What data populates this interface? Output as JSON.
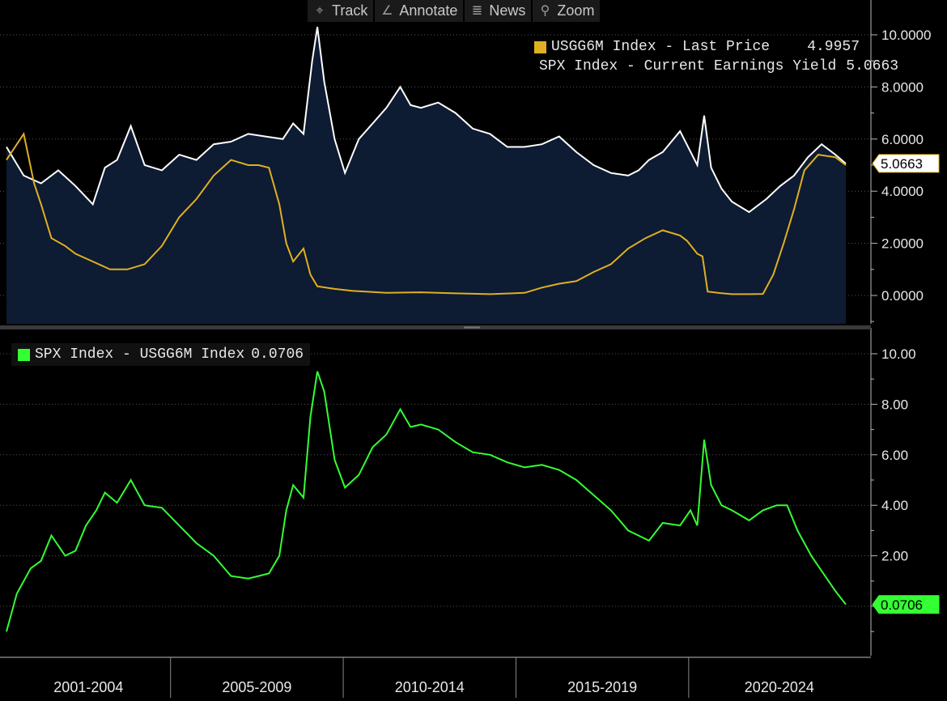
{
  "toolbar": {
    "items": [
      {
        "label": "Track",
        "icon": "crosshair-icon",
        "glyph": "⌖"
      },
      {
        "label": "Annotate",
        "icon": "pencil-icon",
        "glyph": "∠"
      },
      {
        "label": "News",
        "icon": "news-icon",
        "glyph": "≣"
      },
      {
        "label": "Zoom",
        "icon": "magnifier-icon",
        "glyph": "⚲"
      }
    ]
  },
  "colors": {
    "background": "#000000",
    "area_fill": "#0d1b33",
    "yield_line": "#ffffff",
    "usgg_line": "#e0b020",
    "spread_line": "#33ff33",
    "grid": "#555555",
    "axis": "#bbbbbb"
  },
  "legend_top": [
    {
      "label": "USGG6M Index - Last Price",
      "value": "4.9957",
      "color": "#e0b020"
    },
    {
      "label": "SPX Index - Current Earnings Yield",
      "value": "5.0663",
      "color": "#ffffff"
    }
  ],
  "legend_bottom": [
    {
      "label": "SPX Index - USGG6M Index",
      "value": "0.0706",
      "color": "#33ff33"
    }
  ],
  "chart_data": [
    {
      "type": "area",
      "y_ticks": [
        "10.0000",
        "8.0000",
        "6.0000",
        "4.0000",
        "2.0000",
        "0.0000"
      ],
      "ylim": [
        -1,
        11
      ],
      "grid": true,
      "legend": "top-right",
      "last_tag": {
        "value": "5.0663",
        "y": 5.0663
      },
      "series": [
        {
          "name": "SPX Index - Current Earnings Yield",
          "style": "area",
          "x": [
            2000.0,
            2000.5,
            2001.0,
            2001.5,
            2002.0,
            2002.5,
            2002.85,
            2003.2,
            2003.6,
            2004.0,
            2004.5,
            2005.0,
            2005.5,
            2006.0,
            2006.5,
            2007.0,
            2007.5,
            2008.0,
            2008.3,
            2008.6,
            2008.85,
            2009.0,
            2009.2,
            2009.5,
            2009.8,
            2010.2,
            2010.6,
            2011.0,
            2011.4,
            2011.7,
            2012.0,
            2012.5,
            2013.0,
            2013.5,
            2014.0,
            2014.5,
            2015.0,
            2015.5,
            2016.0,
            2016.5,
            2017.0,
            2017.5,
            2018.0,
            2018.3,
            2018.6,
            2019.0,
            2019.5,
            2020.0,
            2020.2,
            2020.4,
            2020.7,
            2021.0,
            2021.5,
            2022.0,
            2022.4,
            2022.8,
            2023.2,
            2023.6,
            2024.0,
            2024.3
          ],
          "y": [
            5.7,
            4.6,
            4.3,
            4.8,
            4.2,
            3.5,
            4.9,
            5.2,
            6.5,
            5.0,
            4.8,
            5.4,
            5.2,
            5.8,
            5.9,
            6.2,
            6.1,
            6.0,
            6.6,
            6.2,
            9.0,
            10.3,
            8.2,
            6.0,
            4.7,
            6.0,
            6.6,
            7.2,
            8.0,
            7.3,
            7.2,
            7.4,
            7.0,
            6.4,
            6.2,
            5.7,
            5.7,
            5.8,
            6.1,
            5.5,
            5.0,
            4.7,
            4.6,
            4.8,
            5.2,
            5.5,
            6.3,
            5.0,
            6.9,
            4.9,
            4.1,
            3.6,
            3.2,
            3.7,
            4.2,
            4.6,
            5.3,
            5.8,
            5.4,
            5.06
          ]
        },
        {
          "name": "USGG6M Index - Last Price",
          "style": "line",
          "x": [
            2000.0,
            2000.5,
            2000.8,
            2001.0,
            2001.3,
            2001.7,
            2002.0,
            2002.5,
            2003.0,
            2003.5,
            2004.0,
            2004.5,
            2005.0,
            2005.5,
            2006.0,
            2006.5,
            2007.0,
            2007.3,
            2007.6,
            2007.9,
            2008.1,
            2008.3,
            2008.6,
            2008.8,
            2009.0,
            2009.5,
            2010.0,
            2011.0,
            2012.0,
            2013.0,
            2014.0,
            2015.0,
            2015.5,
            2016.0,
            2016.5,
            2017.0,
            2017.5,
            2018.0,
            2018.5,
            2019.0,
            2019.5,
            2019.7,
            2020.0,
            2020.15,
            2020.3,
            2020.6,
            2021.0,
            2021.5,
            2021.9,
            2022.2,
            2022.5,
            2022.8,
            2023.1,
            2023.5,
            2024.0,
            2024.3
          ],
          "y": [
            5.2,
            6.2,
            4.3,
            3.5,
            2.2,
            1.9,
            1.6,
            1.3,
            1.0,
            1.0,
            1.2,
            1.9,
            3.0,
            3.7,
            4.6,
            5.2,
            5.0,
            5.0,
            4.9,
            3.5,
            2.0,
            1.3,
            1.8,
            0.8,
            0.35,
            0.25,
            0.18,
            0.1,
            0.12,
            0.08,
            0.05,
            0.1,
            0.3,
            0.45,
            0.55,
            0.9,
            1.2,
            1.8,
            2.2,
            2.5,
            2.3,
            2.1,
            1.6,
            1.5,
            0.15,
            0.1,
            0.05,
            0.05,
            0.06,
            0.8,
            2.0,
            3.3,
            4.8,
            5.4,
            5.3,
            5.0
          ]
        }
      ]
    },
    {
      "type": "line",
      "y_ticks": [
        "10.00",
        "8.00",
        "6.00",
        "4.00",
        "2.00",
        "0.00"
      ],
      "ylim": [
        -2,
        10.5
      ],
      "grid": true,
      "legend": "top-left",
      "last_tag": {
        "value": "0.0706",
        "y": 0.0706
      },
      "categories": [
        "2001-2004",
        "2005-2009",
        "2010-2014",
        "2015-2019",
        "2020-2024"
      ],
      "series": [
        {
          "name": "SPX Index - USGG6M Index",
          "x": [
            2000.0,
            2000.3,
            2000.7,
            2001.0,
            2001.3,
            2001.7,
            2002.0,
            2002.3,
            2002.6,
            2002.85,
            2003.2,
            2003.6,
            2004.0,
            2004.5,
            2005.0,
            2005.5,
            2006.0,
            2006.5,
            2007.0,
            2007.3,
            2007.6,
            2007.9,
            2008.1,
            2008.3,
            2008.6,
            2008.8,
            2009.0,
            2009.2,
            2009.5,
            2009.8,
            2010.2,
            2010.6,
            2011.0,
            2011.4,
            2011.7,
            2012.0,
            2012.5,
            2013.0,
            2013.5,
            2014.0,
            2014.5,
            2015.0,
            2015.5,
            2016.0,
            2016.5,
            2017.0,
            2017.5,
            2018.0,
            2018.3,
            2018.6,
            2019.0,
            2019.5,
            2019.8,
            2020.0,
            2020.2,
            2020.4,
            2020.7,
            2021.0,
            2021.5,
            2021.9,
            2022.3,
            2022.6,
            2022.9,
            2023.3,
            2023.7,
            2024.0,
            2024.3
          ],
          "y": [
            -1.0,
            0.5,
            1.5,
            1.8,
            2.8,
            2.0,
            2.2,
            3.2,
            3.8,
            4.5,
            4.1,
            5.0,
            4.0,
            3.9,
            3.2,
            2.5,
            2.0,
            1.2,
            1.1,
            1.2,
            1.3,
            2.0,
            3.8,
            4.8,
            4.3,
            7.5,
            9.3,
            8.5,
            5.8,
            4.7,
            5.2,
            6.3,
            6.8,
            7.8,
            7.1,
            7.2,
            7.0,
            6.5,
            6.1,
            6.0,
            5.7,
            5.5,
            5.6,
            5.4,
            5.0,
            4.4,
            3.8,
            3.0,
            2.8,
            2.6,
            3.3,
            3.2,
            3.8,
            3.2,
            6.6,
            4.8,
            4.0,
            3.8,
            3.4,
            3.8,
            4.0,
            4.0,
            3.0,
            2.0,
            1.2,
            0.6,
            0.07
          ]
        }
      ]
    }
  ]
}
